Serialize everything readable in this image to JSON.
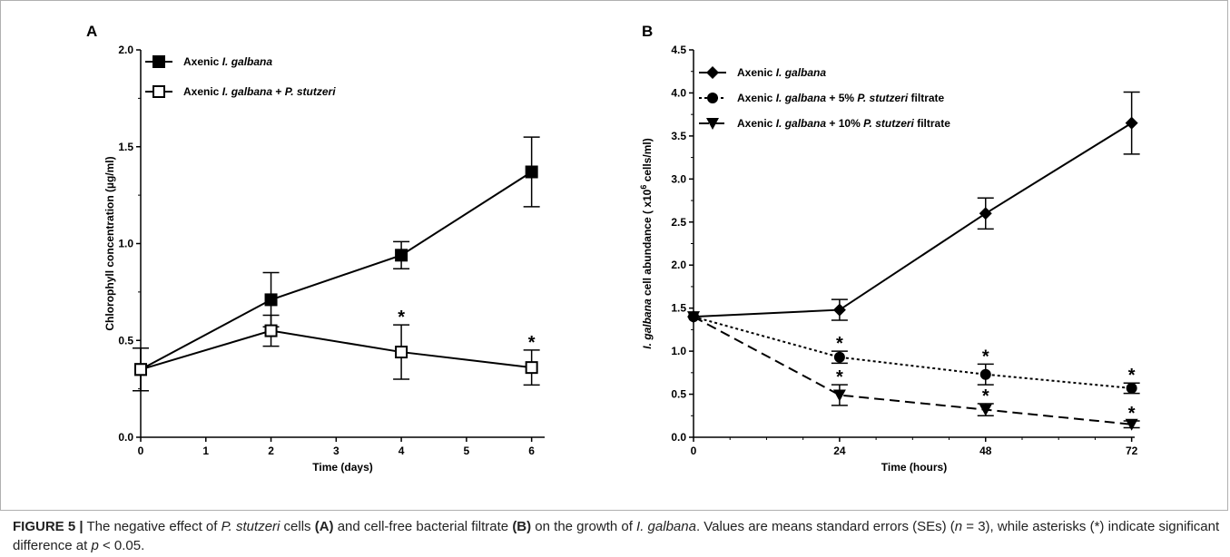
{
  "chart_data": [
    {
      "type": "line",
      "panel_label": "A",
      "xlabel": "Time (days)",
      "ylabel": "Chlorophyll concentration (µg/ml)",
      "xlim": [
        0,
        6.2
      ],
      "ylim": [
        0,
        2.0
      ],
      "xticks": [
        "0",
        "1",
        "2",
        "3",
        "4",
        "5",
        "6"
      ],
      "yticks": [
        "0.0",
        "0.5",
        "1.0",
        "1.5",
        "2.0"
      ],
      "legend_position": "top-left",
      "series": [
        {
          "legend_parts": [
            "Axenic ",
            "I. galbana",
            ""
          ],
          "marker": "filled-square",
          "dash": "solid",
          "x": [
            0,
            2,
            4,
            6
          ],
          "y": [
            0.35,
            0.71,
            0.94,
            1.37
          ],
          "err": [
            0.11,
            0.14,
            0.07,
            0.18
          ],
          "significant": [
            false,
            false,
            false,
            false
          ]
        },
        {
          "legend_parts": [
            "Axenic ",
            "I. galbana",
            " + ",
            "P. stutzeri",
            ""
          ],
          "marker": "open-square",
          "dash": "solid",
          "x": [
            0,
            2,
            4,
            6
          ],
          "y": [
            0.35,
            0.55,
            0.44,
            0.36
          ],
          "err": [
            0.11,
            0.08,
            0.14,
            0.09
          ],
          "significant": [
            false,
            false,
            true,
            true
          ]
        }
      ]
    },
    {
      "type": "line",
      "panel_label": "B",
      "xlabel": "Time (hours)",
      "ylabel_parts": [
        "I. galbana",
        " cell abundance ( x10",
        "6",
        " cells/ml)"
      ],
      "xlim": [
        0,
        72.5
      ],
      "ylim": [
        0,
        4.5
      ],
      "xticks": [
        "0",
        "24",
        "48",
        "72"
      ],
      "yticks": [
        "0.0",
        "0.5",
        "1.0",
        "1.5",
        "2.0",
        "2.5",
        "3.0",
        "3.5",
        "4.0",
        "4.5"
      ],
      "legend_position": "top-left",
      "series": [
        {
          "legend_parts": [
            "Axenic ",
            "I. galbana",
            ""
          ],
          "marker": "diamond",
          "dash": "solid",
          "x": [
            0,
            24,
            48,
            72
          ],
          "y": [
            1.4,
            1.48,
            2.6,
            3.65
          ],
          "err": [
            0,
            0.12,
            0.18,
            0.36
          ],
          "significant": [
            false,
            false,
            false,
            false
          ]
        },
        {
          "legend_parts": [
            "Axenic ",
            "I. galbana",
            " + 5% ",
            "P. stutzeri",
            " filtrate"
          ],
          "marker": "circle",
          "dash": "dotted",
          "x": [
            0,
            24,
            48,
            72
          ],
          "y": [
            1.4,
            0.93,
            0.73,
            0.57
          ],
          "err": [
            0,
            0.07,
            0.12,
            0.06
          ],
          "significant": [
            false,
            true,
            true,
            true
          ]
        },
        {
          "legend_parts": [
            "Axenic ",
            "I. galbana",
            " + 10% ",
            "P. stutzeri",
            " filtrate"
          ],
          "marker": "down-triangle",
          "dash": "dashed",
          "x": [
            0,
            24,
            48,
            72
          ],
          "y": [
            1.4,
            0.49,
            0.32,
            0.15
          ],
          "err": [
            0,
            0.12,
            0.07,
            0.04
          ],
          "significant": [
            false,
            true,
            true,
            true
          ]
        }
      ]
    }
  ],
  "significance_symbol": "*",
  "caption": {
    "label": "FIGURE 5 |",
    "t1": " The negative effect of ",
    "species1": "P. stutzeri",
    "t2": " cells ",
    "refA": "(A)",
    "t3": " and cell-free bacterial filtrate ",
    "refB": "(B)",
    "t4": " on the growth of ",
    "species2": "I. galbana",
    "t5": ". Values are means standard errors (SEs) (",
    "n_var": "n",
    "t6": " = 3), while asterisks (*) indicate significant difference at ",
    "p_var": "p",
    "t7": " < 0.05."
  }
}
